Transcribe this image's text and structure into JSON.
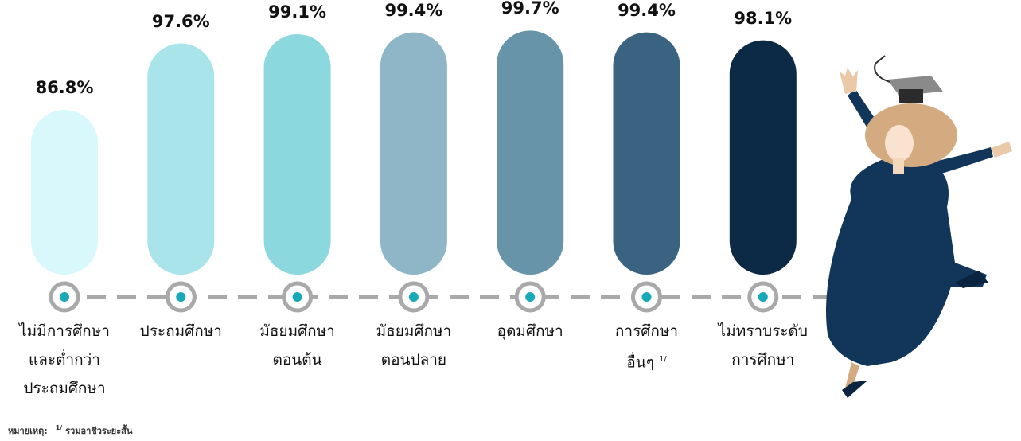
{
  "chart_data": {
    "type": "bar",
    "categories": [
      "ไม่มีการศึกษา\nและต่ำกว่า\nประถมศึกษา",
      "ประถมศึกษา",
      "มัธยมศึกษา\nตอนต้น",
      "มัธยมศึกษา\nตอนปลาย",
      "อุดมศึกษา",
      "การศึกษา\nอื่นๆ",
      "ไม่ทราบระดับ\nการศึกษา"
    ],
    "category_markers": [
      null,
      null,
      null,
      null,
      null,
      "1/",
      null
    ],
    "values": [
      86.8,
      97.6,
      99.1,
      99.4,
      99.7,
      99.4,
      98.1
    ],
    "value_labels": [
      "86.8%",
      "97.6%",
      "99.1%",
      "99.4%",
      "99.7%",
      "99.4%",
      "98.1%"
    ],
    "colors": [
      "#d9f8fb",
      "#a8e4ea",
      "#8bd8df",
      "#8fb6c7",
      "#6794a9",
      "#3a6381",
      "#0c2a45"
    ],
    "ylim": [
      60,
      100
    ]
  },
  "footnote": {
    "label": "หมายเหตุ:",
    "marker": "1/",
    "text": "รวมอาชีวระยะสั้น"
  }
}
